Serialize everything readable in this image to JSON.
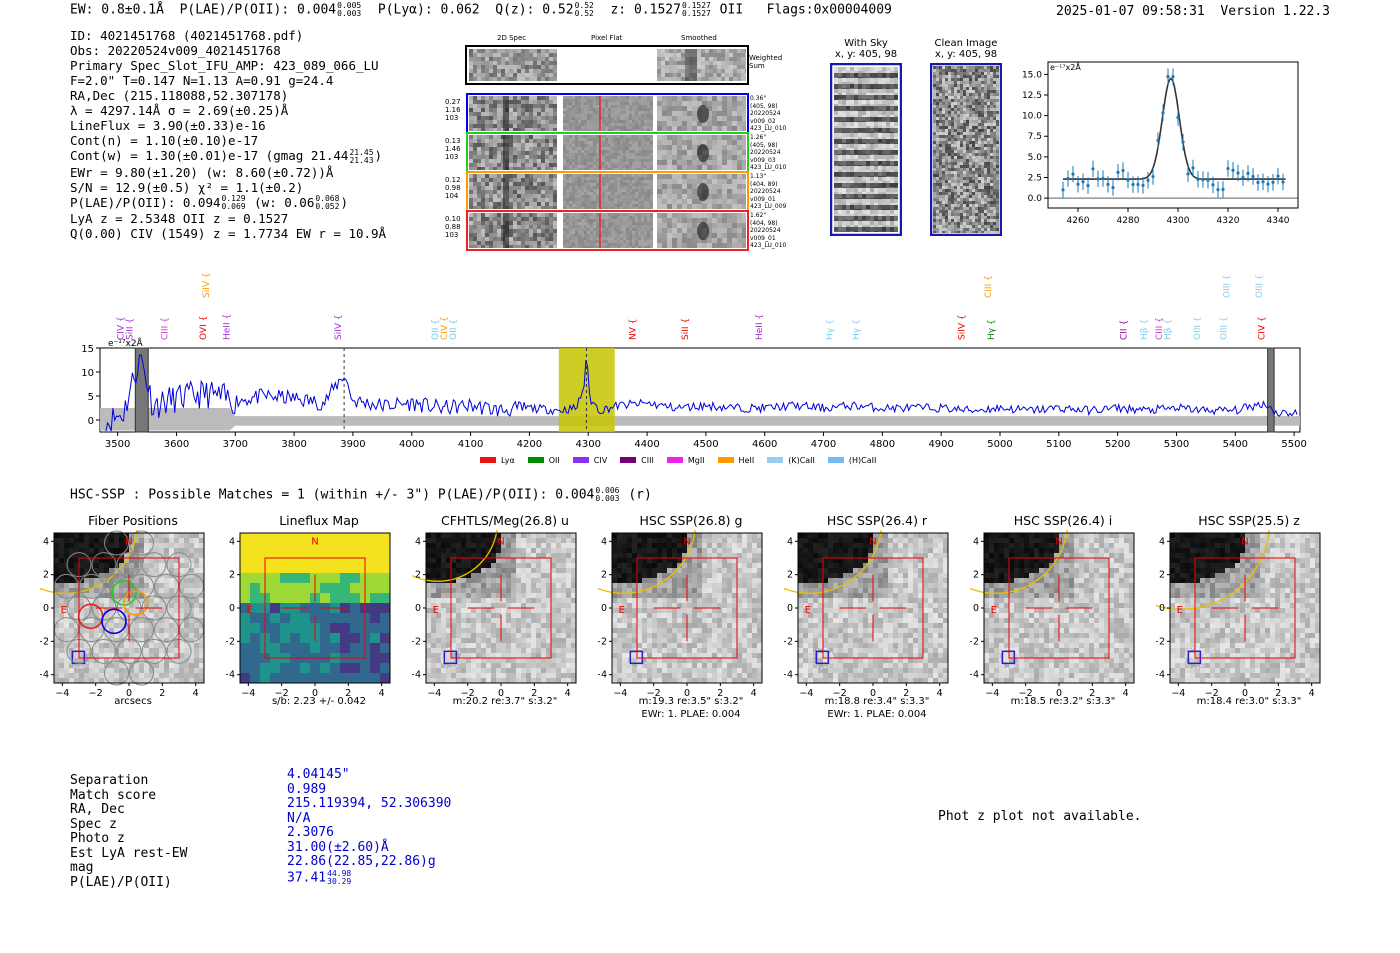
{
  "header": {
    "ew": "EW: 0.8±0.1Å",
    "plae_label": "P(LAE)/P(OII): 0.004",
    "plae_hi": "0.005",
    "plae_lo": "0.003",
    "plya": "P(Lyα): 0.062",
    "qz_label": "Q(z): 0.52",
    "qz_hi": "0.52",
    "qz_lo": "0.52",
    "z_label": "z: 0.1527",
    "z_hi": "0.1527",
    "z_lo": "0.1527",
    "z_line": "OII",
    "flags": "Flags:0x00004009",
    "timestamp": "2025-01-07 09:58:31",
    "version": "Version 1.22.3"
  },
  "info": {
    "id": "ID: 4021451768 (4021451768.pdf)",
    "obs": "Obs: 20220524v009_4021451768",
    "primary": "Primary Spec_Slot_IFU_AMP: 423_089_066_LU",
    "fparams": "F=2.0\"  T=0.147  N=1.13  A=0.91  g=24.4",
    "radec": "RA,Dec (215.118088,52.307178)",
    "lambda": "λ = 4297.14Å  σ = 2.69(±0.25)Å",
    "lineflux": "LineFlux = 3.90(±0.33)e-16",
    "contn": "Cont(n) = 1.10(±0.10)e-17",
    "contw": "Cont(w) = 1.30(±0.01)e-17 (gmag 21.44",
    "contw_hi": "21.45",
    "contw_lo": "21.43",
    "ewr": "EWr = 9.80(±1.20) (w: 8.60(±0.72))Å",
    "sn": "S/N = 12.9(±0.5)  χ² = 1.1(±0.2)",
    "plae2_a": "P(LAE)/P(OII): 0.094",
    "plae2_a_hi": "0.129",
    "plae2_a_lo": "0.069",
    "plae2_b": "(w: 0.06",
    "plae2_b_hi": "0.068",
    "plae2_b_lo": "0.052",
    "lya": "LyA z = 2.5348  OII z = 0.1527",
    "q": "Q(0.00) CIV (1549) z = 1.7734  EW r = 10.9Å"
  },
  "spec2d": {
    "col_titles": [
      "2D Spec",
      "Pixel Flat",
      "Smoothed"
    ],
    "weighted": "Weighted Sum",
    "rows": [
      {
        "left": [
          "0.27",
          "1.16",
          "103"
        ],
        "right": [
          "0.36\"",
          "(405, 98)",
          "20220524",
          "v009_02",
          "423_LU_010"
        ],
        "color": "#0000ee"
      },
      {
        "left": [
          "0.13",
          "1.46",
          "103"
        ],
        "right": [
          "1.26\"",
          "(405, 98)",
          "20220524",
          "v009_03",
          "423_LU_010"
        ],
        "color": "#22cc22"
      },
      {
        "left": [
          "0.12",
          "0.98",
          "104"
        ],
        "right": [
          "1.13\"",
          "(404, 89)",
          "20220524",
          "v009_01",
          "423_LU_009"
        ],
        "color": "#ff9900"
      },
      {
        "left": [
          "0.10",
          "0.88",
          "103"
        ],
        "right": [
          "1.62\"",
          "(404, 98)",
          "20220524",
          "v009_01",
          "423_LU_010"
        ],
        "color": "#ee2222"
      }
    ]
  },
  "sky": {
    "with_sky": "With Sky",
    "with_sky_xy": "x, y: 405, 98",
    "clean": "Clean Image",
    "clean_xy": "x, y: 405, 98"
  },
  "fit_chart": {
    "unit": "e⁻¹⁷x2Å",
    "xticks": [
      4260,
      4280,
      4300,
      4320,
      4340
    ],
    "yticks": [
      "0.0",
      "2.5",
      "5.0",
      "7.5",
      "10.0",
      "12.5",
      "15.0"
    ]
  },
  "chart_data": {
    "type": "line",
    "title": "",
    "xlabel": "",
    "ylabel": "e⁻¹⁷x2Å",
    "xlim": [
      3470,
      5510
    ],
    "ylim": [
      -2.5,
      15
    ],
    "xticks": [
      3500,
      3600,
      3700,
      3800,
      3900,
      4000,
      4100,
      4200,
      4300,
      4400,
      4500,
      4600,
      4700,
      4800,
      4900,
      5000,
      5100,
      5200,
      5300,
      5400,
      5500
    ],
    "yticks": [
      0,
      5,
      10,
      15
    ],
    "emission_peak": {
      "wavelength": 4297.14,
      "flux": 14.5
    },
    "highlight_range": [
      4250,
      4345
    ],
    "bad_regions": [
      [
        3530,
        3552
      ],
      [
        5455,
        5466
      ]
    ],
    "dashed_lines": [
      3885,
      4297
    ],
    "series": [
      {
        "name": "spectrum",
        "color": "#0000dd",
        "x": [
          3480,
          3510,
          3530,
          3540,
          3560,
          3600,
          3650,
          3700,
          3750,
          3800,
          3850,
          3885,
          3900,
          3950,
          4000,
          4050,
          4100,
          4150,
          4200,
          4250,
          4280,
          4290,
          4297,
          4305,
          4320,
          4350,
          4400,
          4450,
          4500,
          4550,
          4600,
          4650,
          4700,
          4750,
          4800,
          4850,
          4900,
          4950,
          5000,
          5050,
          5100,
          5150,
          5200,
          5250,
          5300,
          5350,
          5400,
          5450,
          5470,
          5500
        ],
        "y": [
          -0.5,
          1.5,
          10.0,
          13.0,
          3.0,
          4.5,
          5.5,
          4.0,
          5.0,
          4.5,
          3.5,
          9.5,
          4.0,
          3.0,
          3.5,
          2.5,
          3.0,
          2.0,
          2.5,
          2.0,
          2.5,
          6.0,
          14.5,
          4.0,
          2.0,
          3.0,
          3.5,
          2.5,
          3.0,
          2.5,
          2.5,
          3.0,
          2.5,
          3.0,
          2.5,
          2.5,
          2.5,
          2.0,
          2.5,
          2.0,
          2.5,
          2.0,
          2.5,
          2.0,
          2.5,
          2.0,
          2.0,
          3.5,
          1.5,
          1.5
        ]
      }
    ],
    "line_labels": [
      {
        "name": "CIV",
        "wave": 3510,
        "color": "#9933cc",
        "row": 2
      },
      {
        "name": "SiII",
        "wave": 3525,
        "color": "#9933cc",
        "row": 2
      },
      {
        "name": "CIII",
        "wave": 3585,
        "color": "#cc33cc",
        "row": 2
      },
      {
        "name": "OVI",
        "wave": 3650,
        "color": "#ee0000",
        "row": 2
      },
      {
        "name": "SiIV",
        "wave": 3655,
        "color": "#ff9900",
        "row": 1
      },
      {
        "name": "HeII",
        "wave": 3690,
        "color": "#9933cc",
        "row": 2
      },
      {
        "name": "SiIV",
        "wave": 3880,
        "color": "#9933cc",
        "row": 2
      },
      {
        "name": "OII",
        "wave": 4045,
        "color": "#66ccee",
        "row": 2
      },
      {
        "name": "CIV",
        "wave": 4060,
        "color": "#ff9900",
        "row": 2
      },
      {
        "name": "OII",
        "wave": 4075,
        "color": "#66ccee",
        "row": 2
      },
      {
        "name": "NV",
        "wave": 4380,
        "color": "#ee0000",
        "row": 2
      },
      {
        "name": "SiII",
        "wave": 4470,
        "color": "#ee0000",
        "row": 2
      },
      {
        "name": "HeII",
        "wave": 4595,
        "color": "#9933cc",
        "row": 2
      },
      {
        "name": "Hγ",
        "wave": 4715,
        "color": "#88ccee",
        "row": 2
      },
      {
        "name": "Hγ",
        "wave": 4760,
        "color": "#88ccee",
        "row": 2
      },
      {
        "name": "SiIV",
        "wave": 4940,
        "color": "#ee0000",
        "row": 2
      },
      {
        "name": "CIII",
        "wave": 4985,
        "color": "#ff9900",
        "row": 1
      },
      {
        "name": "Hγ",
        "wave": 4990,
        "color": "#008800",
        "row": 2
      },
      {
        "name": "CII",
        "wave": 5215,
        "color": "#990099",
        "row": 2
      },
      {
        "name": "Hβ",
        "wave": 5250,
        "color": "#88ccee",
        "row": 2
      },
      {
        "name": "CIII",
        "wave": 5275,
        "color": "#cc33cc",
        "row": 2
      },
      {
        "name": "Hβ",
        "wave": 5290,
        "color": "#88ccee",
        "row": 2
      },
      {
        "name": "OIII",
        "wave": 5340,
        "color": "#88ccee",
        "row": 2
      },
      {
        "name": "OIII",
        "wave": 5385,
        "color": "#88ccee",
        "row": 2
      },
      {
        "name": "OIII",
        "wave": 5390,
        "color": "#88ccee",
        "row": 1
      },
      {
        "name": "OIII",
        "wave": 5445,
        "color": "#88ccee",
        "row": 1
      },
      {
        "name": "CIV",
        "wave": 5450,
        "color": "#ee0000",
        "row": 2
      }
    ]
  },
  "legend": [
    {
      "label": "Lyα",
      "color": "#ee1111"
    },
    {
      "label": "OII",
      "color": "#008800"
    },
    {
      "label": "CIV",
      "color": "#8833ee"
    },
    {
      "label": "CIII",
      "color": "#770077"
    },
    {
      "label": "MgII",
      "color": "#ee22ee"
    },
    {
      "label": "HeII",
      "color": "#ff9900"
    },
    {
      "label": "(K)CaII",
      "color": "#99ccee"
    },
    {
      "label": "(H)CaII",
      "color": "#77bbee"
    }
  ],
  "hsc": {
    "title": "HSC-SSP : Possible Matches = 1 (within +/- 3\")  P(LAE)/P(OII): 0.004",
    "title_hi": "0.006",
    "title_lo": "0.003",
    "title_tail": "(r)"
  },
  "cutouts": [
    {
      "title": "Fiber Positions",
      "xlabel": "arcsecs",
      "sub": "",
      "kind": "fiber"
    },
    {
      "title": "Lineflux Map",
      "xlabel": "s/b: 2.23 +/- 0.042",
      "sub": "",
      "kind": "lineflux"
    },
    {
      "title": "CFHTLS/Meg(26.8) u",
      "xlabel": "m:20.2  re:3.7\"  s:3.2\"",
      "sub": "",
      "kind": "img"
    },
    {
      "title": "HSC SSP(26.8) g",
      "xlabel": "m:19.3  re:3.5\"  s:3.2\"",
      "sub": "EWr: 1. PLAE: 0.004",
      "kind": "img"
    },
    {
      "title": "HSC SSP(26.4) r",
      "xlabel": "m:18.8  re:3.4\"  s:3.3\"",
      "sub": "EWr: 1. PLAE: 0.004",
      "kind": "img"
    },
    {
      "title": "HSC SSP(26.4) i",
      "xlabel": "m:18.5  re:3.2\"  s:3.3\"",
      "sub": "",
      "kind": "img"
    },
    {
      "title": "HSC SSP(25.5) z",
      "xlabel": "m:18.4  re:3.0\"  s:3.3\"",
      "sub": "",
      "kind": "img"
    }
  ],
  "cutout_axis": {
    "xticks": [
      "−4",
      "−2",
      "0",
      "2",
      "4"
    ],
    "yticks": [
      "4",
      "2",
      "0",
      "−2",
      "−4"
    ],
    "north": "N",
    "east": "E"
  },
  "match": {
    "labels": [
      "Separation",
      "Match score",
      "RA, Dec",
      "Spec z",
      "Photo z",
      "Est LyA rest-EW",
      "mag",
      "P(LAE)/P(OII)"
    ],
    "values": [
      "4.04145\"",
      "0.989",
      "215.119394, 52.306390",
      "N/A",
      "2.3076",
      "31.00(±2.60)Å",
      "22.86(22.85,22.86)g",
      "37.41"
    ],
    "plae_hi": "44.98",
    "plae_lo": "30.29"
  },
  "photz_note": "Phot z plot not available."
}
